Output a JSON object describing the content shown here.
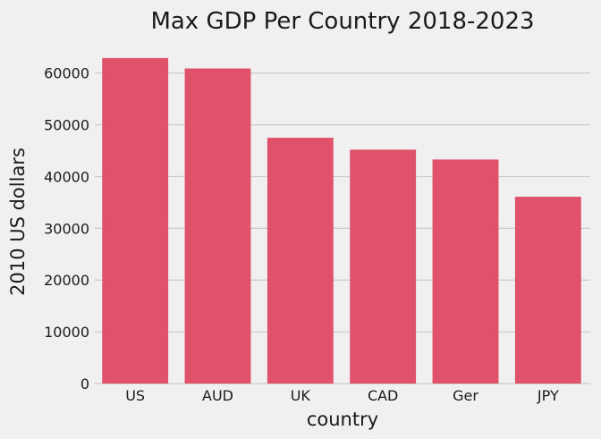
{
  "chart_data": {
    "type": "bar",
    "title": "Max GDP Per Country 2018-2023",
    "xlabel": "country",
    "ylabel": "2010 US dollars",
    "categories": [
      "US",
      "AUD",
      "UK",
      "CAD",
      "Ger",
      "JPY"
    ],
    "values": [
      62900,
      60900,
      47500,
      45200,
      43300,
      36100
    ],
    "ylim": [
      0,
      66000
    ],
    "yticks": [
      0,
      10000,
      20000,
      30000,
      40000,
      50000,
      60000
    ],
    "ytick_labels": [
      "0",
      "10000",
      "20000",
      "30000",
      "40000",
      "50000",
      "60000"
    ],
    "grid": true,
    "colors": {
      "bar": "#e0526a",
      "background": "#f0f0f0",
      "grid": "#cbcbcb",
      "text": "#1a1a1a"
    }
  }
}
